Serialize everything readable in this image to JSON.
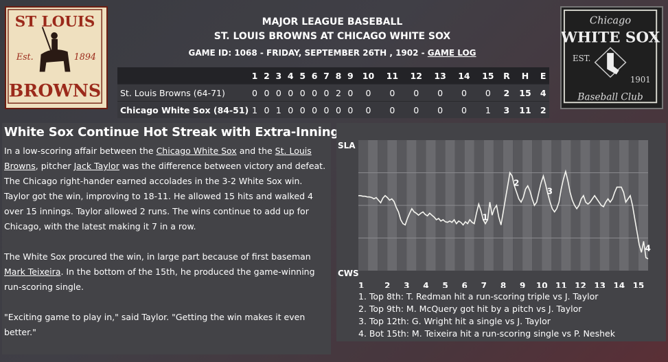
{
  "header": {
    "line1": "MAJOR LEAGUE BASEBALL",
    "line2": "ST. LOUIS BROWNS AT CHICAGO WHITE SOX",
    "game_info": "GAME ID: 1068 - FRIDAY, SEPTEMBER 26TH , 1902 - ",
    "game_log_link": "GAME LOG"
  },
  "logos": {
    "browns": {
      "top": "ST LOUIS",
      "est": "Est.",
      "year": "1894",
      "name": "BROWNS"
    },
    "sox": {
      "city": "Chicago",
      "name": "WHITE SOX",
      "est": "EST.",
      "year": "1901",
      "club": "Baseball Club"
    }
  },
  "linescore": {
    "innings": [
      "1",
      "2",
      "3",
      "4",
      "5",
      "6",
      "7",
      "8",
      "9",
      "10",
      "11",
      "12",
      "13",
      "14",
      "15"
    ],
    "totals_headers": [
      "R",
      "H",
      "E"
    ],
    "teams": [
      {
        "name": "St. Louis Browns (64-71)",
        "bold": false,
        "innings": [
          "0",
          "0",
          "0",
          "0",
          "0",
          "0",
          "0",
          "2",
          "0",
          "0",
          "0",
          "0",
          "0",
          "0",
          "0"
        ],
        "totals": [
          "2",
          "15",
          "4"
        ]
      },
      {
        "name": "Chicago White Sox (84-51)",
        "bold": true,
        "innings": [
          "1",
          "0",
          "1",
          "0",
          "0",
          "0",
          "0",
          "0",
          "0",
          "0",
          "0",
          "0",
          "0",
          "0",
          "1"
        ],
        "totals": [
          "3",
          "11",
          "2"
        ]
      }
    ]
  },
  "article": {
    "headline": "White Sox Continue Hot Streak with Extra-Inning Win",
    "p1": [
      {
        "t": "In a low-scoring affair between the "
      },
      {
        "t": "Chicago White Sox",
        "link": true
      },
      {
        "t": " and the "
      },
      {
        "t": "St. Louis Browns",
        "link": true
      },
      {
        "t": ", pitcher "
      },
      {
        "t": "Jack Taylor",
        "link": true
      },
      {
        "t": " was the difference between victory and defeat. The Chicago right-hander earned accolades in the 3-2 White Sox win. Taylor got the win, improving to 18-11. He allowed 15 hits and walked 4 over 15 innings. Taylor allowed 2 runs. The wins continue to add up for Chicago, with the latest making it 7 in a row."
      }
    ],
    "p2": [
      {
        "t": "The White Sox procured the win, in large part because of first baseman "
      },
      {
        "t": "Mark Teixeira",
        "link": true
      },
      {
        "t": ". In the bottom of the 15th, he produced the game-winning run-scoring single."
      }
    ],
    "p3": [
      {
        "t": "\"Exciting game to play in,\" said Taylor. \"Getting the win makes it even better.\""
      }
    ]
  },
  "chart_data": {
    "type": "line",
    "y_top_label": "SLA",
    "y_bottom_label": "CWS",
    "ylim": [
      -1,
      1
    ],
    "x_labels": [
      "1",
      "2",
      "3",
      "4",
      "5",
      "6",
      "7",
      "8",
      "9",
      "10",
      "11",
      "12",
      "13",
      "14",
      "15"
    ],
    "half_innings": 30,
    "series": [
      {
        "values": [
          0.15,
          0.15,
          0.14,
          0.14,
          0.13,
          0.13,
          0.12,
          0.1,
          0.12,
          0.08,
          0.04,
          0.11,
          0.15,
          0.12,
          0.08,
          0.1,
          0.06,
          -0.03,
          -0.1,
          -0.22,
          -0.28,
          -0.3,
          -0.2,
          -0.12,
          -0.05,
          -0.1,
          -0.12,
          -0.15,
          -0.12,
          -0.1,
          -0.14,
          -0.16,
          -0.12,
          -0.15,
          -0.18,
          -0.22,
          -0.2,
          -0.24,
          -0.22,
          -0.25,
          -0.26,
          -0.24,
          -0.26,
          -0.22,
          -0.28,
          -0.24,
          -0.26,
          -0.3,
          -0.25,
          -0.28,
          -0.22,
          -0.26,
          -0.28,
          -0.12,
          0.02,
          -0.08,
          -0.22,
          -0.28,
          -0.22,
          0.05,
          -0.15,
          -0.05,
          0.0,
          -0.18,
          -0.3,
          -0.1,
          0.1,
          0.3,
          0.5,
          0.45,
          0.3,
          0.2,
          0.1,
          0.05,
          0.12,
          0.25,
          0.3,
          0.22,
          0.1,
          0.0,
          0.05,
          0.2,
          0.35,
          0.45,
          0.32,
          0.18,
          0.05,
          -0.05,
          -0.1,
          -0.05,
          0.05,
          0.25,
          0.4,
          0.52,
          0.38,
          0.2,
          0.08,
          0.0,
          -0.05,
          0.0,
          0.1,
          0.15,
          0.05,
          0.02,
          0.05,
          0.1,
          0.15,
          0.1,
          0.05,
          0.0,
          -0.02,
          0.05,
          0.1,
          0.05,
          0.1,
          0.2,
          0.28,
          0.28,
          0.28,
          0.2,
          0.05,
          0.1,
          0.15,
          0.0,
          -0.2,
          -0.4,
          -0.6,
          -0.72,
          -0.55,
          -0.8,
          -0.82
        ]
      }
    ],
    "annotations": [
      {
        "label": "1",
        "index": 55,
        "note": "1. Top 8th: T. Redman hit a run-scoring triple vs J. Taylor"
      },
      {
        "label": "2",
        "index": 69,
        "note": "2. Top 9th: M. McQuery got hit by a pitch vs J. Taylor"
      },
      {
        "label": "3",
        "index": 84,
        "note": "3. Top 12th: G. Wright hit a single vs J. Taylor"
      },
      {
        "label": "4",
        "index": 128,
        "note": "4. Bot 15th: M. Teixeira hit a run-scoring single vs P. Neshek"
      }
    ]
  }
}
